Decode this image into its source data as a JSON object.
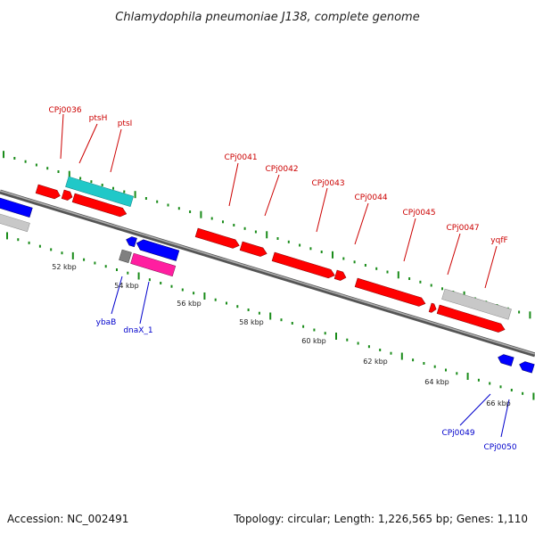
{
  "title": "Chlamydophila pneumoniae J138, complete genome",
  "footer": {
    "accession": "Accession: NC_002491",
    "topology": "Topology: circular; Length: 1,226,565 bp; Genes: 1,110"
  },
  "colors": {
    "forward": "#ff0000",
    "reverse": "#0000ff",
    "cyan": "#20c8c8",
    "magenta": "#ff1ea0",
    "gray": "#c8c8c8",
    "darkgray": "#808080",
    "tick": "#1a8c1a",
    "label_fwd": "#cc0000",
    "label_rev": "#0000cc",
    "backbone": "#707070"
  },
  "scale_labels": [
    "52 kbp",
    "54 kbp",
    "56 kbp",
    "58 kbp",
    "60 kbp",
    "62 kbp",
    "64 kbp",
    "66 kbp"
  ],
  "gene_labels_forward": [
    "CPj0036",
    "ptsH",
    "ptsI",
    "CPj0041",
    "CPj0042",
    "CPj0043",
    "CPj0044",
    "CPj0045",
    "CPj0047",
    "yqfF"
  ],
  "gene_labels_reverse": [
    "ybaB",
    "dnaX_1",
    "CPj0049",
    "CPj0050"
  ]
}
